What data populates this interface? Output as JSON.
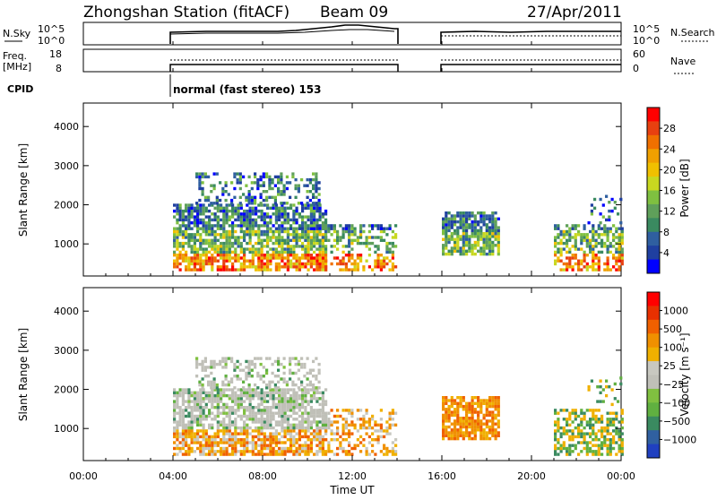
{
  "header": {
    "title": "Zhongshan Station (fitACF)",
    "beam": "Beam 09",
    "date": "27/Apr/2011"
  },
  "panels": {
    "nsky_label": "N.Sky",
    "nsky_ticks": [
      "10^5",
      "10^0"
    ],
    "nsearch_label": "N.Search",
    "nsearch_ticks": [
      "10^5",
      "10^0"
    ],
    "freq_label": "Freq.",
    "freq_unit": "[MHz]",
    "freq_ticks": [
      "18",
      "8"
    ],
    "nave_label": "Nave",
    "nave_ticks": [
      "60",
      "0"
    ],
    "cpid_label": "CPID",
    "cpid_text": "normal (fast stereo) 153"
  },
  "colors": {
    "power_scale": [
      "#0000ff",
      "#1f3fa0",
      "#2f5fa0",
      "#3a8a60",
      "#5fa05a",
      "#7fc040",
      "#c8d820",
      "#f0c000",
      "#f0a000",
      "#f07000",
      "#e84010",
      "#ff0000"
    ],
    "velocity_scale": [
      "#2040c0",
      "#3060a0",
      "#3a8a60",
      "#60b040",
      "#80c040",
      "#c0c0b8",
      "#c8c8c0",
      "#f0b000",
      "#f09000",
      "#f06000",
      "#e83000",
      "#ff0000"
    ]
  },
  "chart_data": {
    "type": "heatmap",
    "x_axis": {
      "label": "Time UT",
      "ticks": [
        "00:00",
        "04:00",
        "08:00",
        "12:00",
        "16:00",
        "20:00",
        "00:00"
      ],
      "range_hours": [
        0,
        24
      ]
    },
    "data_gaps_hours": [
      [
        0,
        4
      ],
      [
        14,
        16
      ]
    ],
    "power_panel": {
      "ylabel": "Slant Range [km]",
      "yticks": [
        "4000",
        "3000",
        "2000",
        "1000"
      ],
      "ylim": [
        180,
        4600
      ],
      "colorbar_label": "Power [dB]",
      "colorbar_ticks": [
        "28",
        "24",
        "20",
        "16",
        "12",
        "8",
        "4"
      ]
    },
    "velocity_panel": {
      "ylabel": "Slant Range [km]",
      "yticks": [
        "4000",
        "3000",
        "2000",
        "1000"
      ],
      "ylim": [
        180,
        4600
      ],
      "colorbar_label": "Velocity [m s⁻¹]",
      "colorbar_ticks": [
        "1000",
        "500",
        "100",
        "25",
        "−25",
        "−100",
        "−500",
        "−1000"
      ]
    }
  }
}
